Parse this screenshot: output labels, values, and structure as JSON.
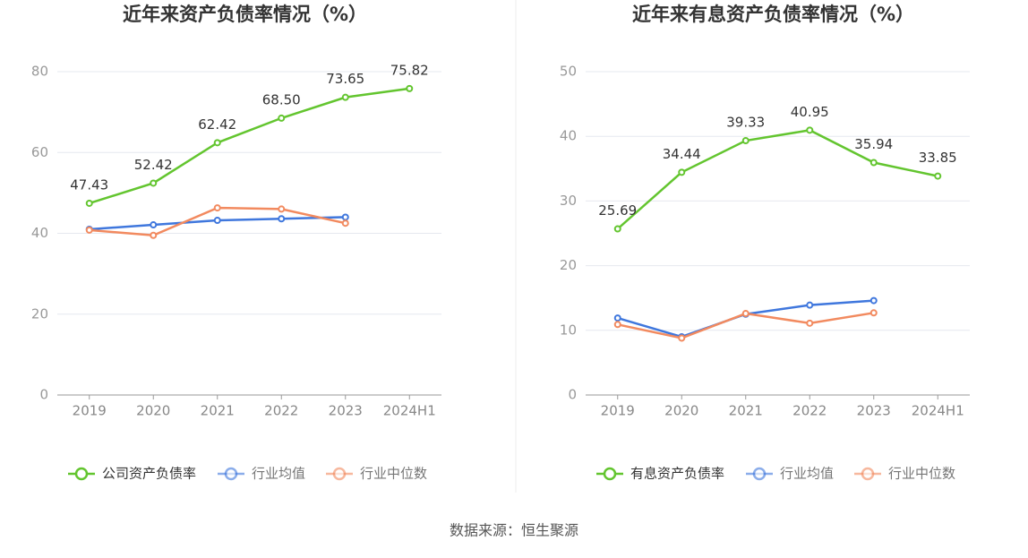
{
  "chart_data": [
    {
      "type": "line",
      "title": "近年来资产负债率情况（%）",
      "categories": [
        "2019",
        "2020",
        "2021",
        "2022",
        "2023",
        "2024H1"
      ],
      "ylim": [
        0,
        80
      ],
      "yticks": [
        0,
        20,
        40,
        60,
        80
      ],
      "grid": true,
      "series": [
        {
          "name": "公司资产负债率",
          "color": "#63c52f",
          "values": [
            47.43,
            52.42,
            62.42,
            68.5,
            73.65,
            75.82
          ],
          "value_labels": [
            "47.43",
            "52.42",
            "62.42",
            "68.50",
            "73.65",
            "75.82"
          ]
        },
        {
          "name": "行业均值",
          "color": "#3f77dd",
          "values": [
            41.0,
            42.1,
            43.2,
            43.6,
            44.0,
            null
          ]
        },
        {
          "name": "行业中位数",
          "color": "#f28a5f",
          "values": [
            40.8,
            39.5,
            46.3,
            46.0,
            42.5,
            null
          ]
        }
      ]
    },
    {
      "type": "line",
      "title": "近年来有息资产负债率情况（%）",
      "categories": [
        "2019",
        "2020",
        "2021",
        "2022",
        "2023",
        "2024H1"
      ],
      "ylim": [
        0,
        50
      ],
      "yticks": [
        0,
        10,
        20,
        30,
        40,
        50
      ],
      "grid": true,
      "series": [
        {
          "name": "有息资产负债率",
          "color": "#63c52f",
          "values": [
            25.69,
            34.44,
            39.33,
            40.95,
            35.94,
            33.85
          ]
        },
        {
          "name": "行业均值",
          "color": "#3f77dd",
          "values": [
            11.9,
            9.0,
            12.5,
            13.9,
            14.6,
            null
          ]
        },
        {
          "name": "行业中位数",
          "color": "#f28a5f",
          "values": [
            10.9,
            8.8,
            12.6,
            11.1,
            12.7,
            null
          ]
        }
      ]
    }
  ],
  "source": "数据来源：恒生聚源"
}
